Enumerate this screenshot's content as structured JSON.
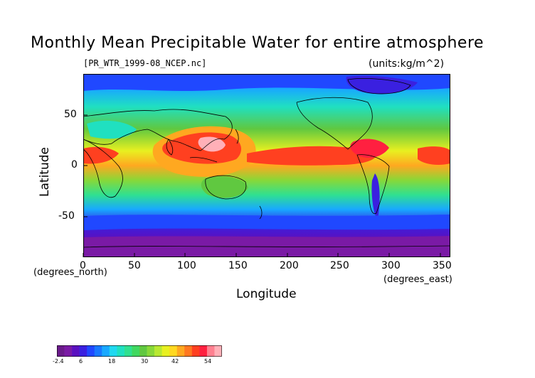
{
  "title": "Monthly Mean Precipitable Water for entire atmosphere",
  "source_file": "[PR_WTR_1999-08_NCEP.nc]",
  "units": "(units:kg/m^2)",
  "x_axis": {
    "label": "Longitude",
    "unit": "(degrees_east)",
    "ticks": [
      "0",
      "50",
      "100",
      "150",
      "200",
      "250",
      "300",
      "350"
    ]
  },
  "y_axis": {
    "label": "Latitude",
    "unit": "(degrees_north)",
    "ticks": [
      "50",
      "0",
      "-50"
    ]
  },
  "colorbar": {
    "labels": [
      "-2.4",
      "6",
      "18",
      "30",
      "42",
      "54"
    ],
    "colors": [
      "#6a1a8a",
      "#7a1aa5",
      "#5a10c0",
      "#3a20e0",
      "#2048ff",
      "#1878ff",
      "#18a8ff",
      "#20d8f0",
      "#20e0c0",
      "#30e090",
      "#40d860",
      "#60c840",
      "#88d838",
      "#b8e830",
      "#e8f020",
      "#ffd820",
      "#ffa820",
      "#ff7820",
      "#ff4020",
      "#ff2040",
      "#ff8090",
      "#ffb0b8"
    ]
  },
  "chart_data": {
    "type": "heatmap",
    "title": "Monthly Mean Precipitable Water for entire atmosphere",
    "subtitle": "[PR_WTR_1999-08_NCEP.nc]",
    "units": "kg/m^2",
    "xlabel": "Longitude",
    "ylabel": "Latitude",
    "xlim": [
      0,
      360
    ],
    "ylim": [
      -90,
      90
    ],
    "color_range": [
      -2.4,
      60
    ],
    "colorbar_ticks": [
      -2.4,
      6,
      18,
      30,
      42,
      54
    ]
  }
}
